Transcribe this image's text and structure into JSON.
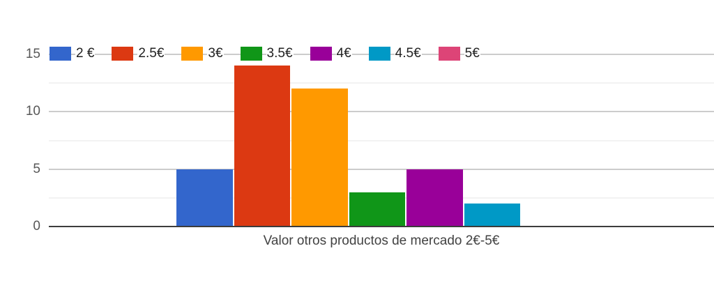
{
  "chart_data": {
    "type": "bar",
    "title": "",
    "xlabel": "Valor otros productos de mercado 2€-5€",
    "ylabel": "",
    "categories": [
      "Valor otros productos de mercado 2€-5€"
    ],
    "series": [
      {
        "name": "2 €",
        "value": 5,
        "color": "#3366CC"
      },
      {
        "name": "2.5€",
        "value": 14,
        "color": "#DC3912"
      },
      {
        "name": "3€",
        "value": 12,
        "color": "#FF9900"
      },
      {
        "name": "3.5€",
        "value": 3,
        "color": "#109618"
      },
      {
        "name": "4€",
        "value": 5,
        "color": "#990099"
      },
      {
        "name": "4.5€",
        "value": 2,
        "color": "#0099C6"
      },
      {
        "name": "5€",
        "value": 0,
        "color": "#DD4477"
      }
    ],
    "ylim": [
      0,
      15
    ],
    "y_ticks_major": [
      0,
      5,
      10,
      15
    ],
    "y_ticks_minor": [
      2.5,
      7.5,
      12.5
    ],
    "grid": true,
    "legend_position": "top"
  },
  "colors": {
    "background": "#ffffff",
    "major_grid": "#cccccc",
    "minor_grid": "#f2f2f2",
    "axis_line": "#3c3c3c",
    "tick_label_text": "#575757",
    "legend_text": "#212121",
    "x_title_text": "#424242"
  }
}
